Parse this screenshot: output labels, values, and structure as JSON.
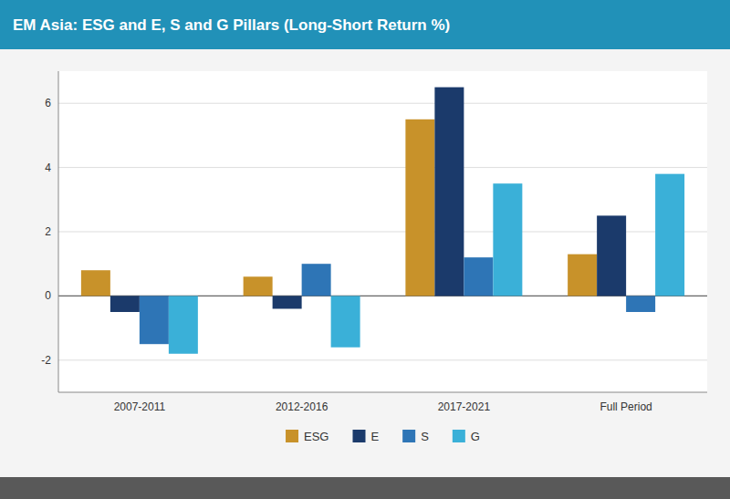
{
  "chart_data": {
    "type": "bar",
    "title": "EM Asia: ESG and E, S and G Pillars (Long-Short Return %)",
    "categories": [
      "2007-2011",
      "2012-2016",
      "2017-2021",
      "Full Period"
    ],
    "series": [
      {
        "name": "ESG",
        "color": "#c8922a",
        "values": [
          0.8,
          0.6,
          5.5,
          1.3
        ]
      },
      {
        "name": "E",
        "color": "#1b3a6b",
        "values": [
          -0.5,
          -0.4,
          6.5,
          2.5
        ]
      },
      {
        "name": "S",
        "color": "#2e75b6",
        "values": [
          -1.5,
          1.0,
          1.2,
          -0.5
        ]
      },
      {
        "name": "G",
        "color": "#3ab0d8",
        "values": [
          -1.8,
          -1.6,
          3.5,
          3.8
        ]
      }
    ],
    "ylim": [
      -3,
      7
    ],
    "yticks": [
      -2,
      0,
      2,
      4,
      6
    ],
    "grid": true,
    "legend": "bottom"
  }
}
